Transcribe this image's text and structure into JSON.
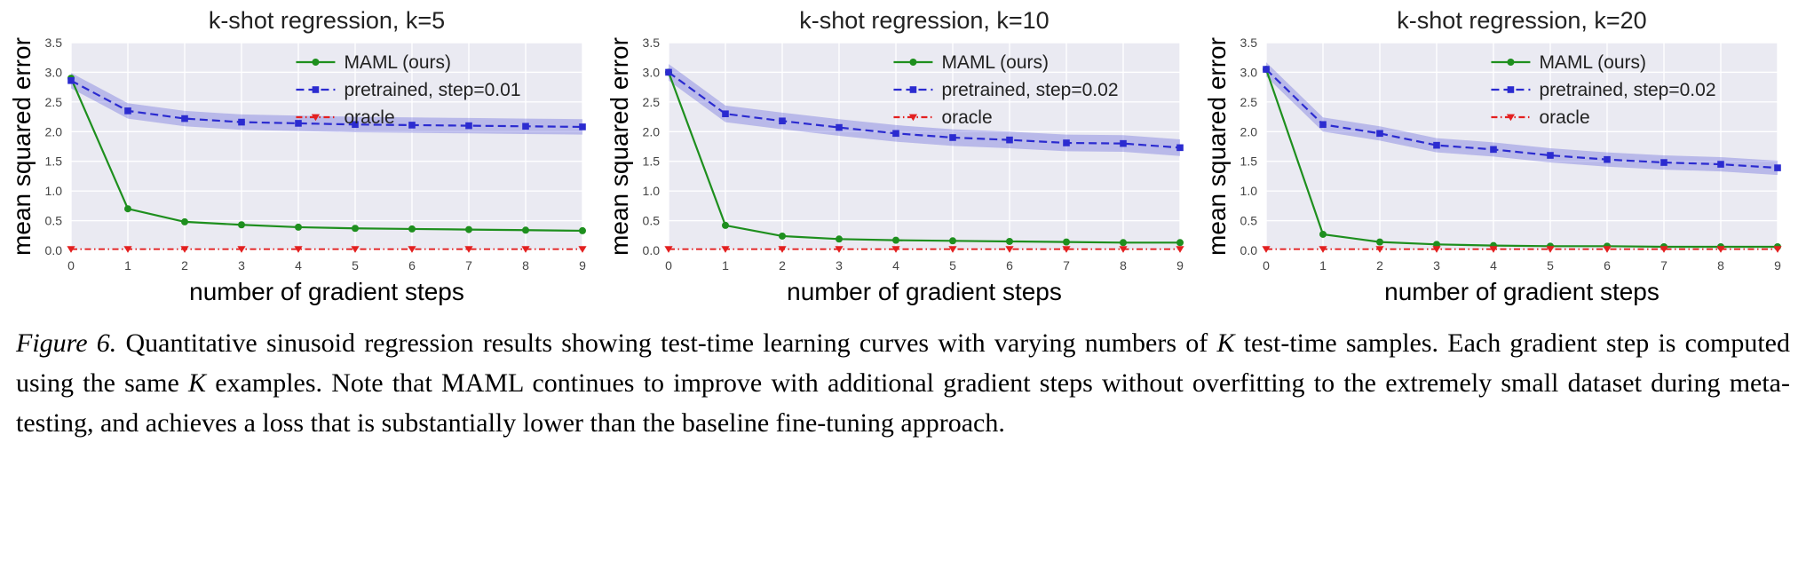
{
  "style": {
    "plot_bg": "#eaeaf2",
    "grid_color": "#ffffff",
    "title_color": "#222222",
    "axis_label_color": "#000000",
    "tick_color": "#444444",
    "legend_text_color": "#222222"
  },
  "chart_data": [
    {
      "type": "line",
      "title": "k-shot regression, k=5",
      "xlabel": "number of gradient steps",
      "ylabel": "mean squared error",
      "x": [
        0,
        1,
        2,
        3,
        4,
        5,
        6,
        7,
        8,
        9
      ],
      "xlim": [
        0,
        9
      ],
      "ylim": [
        0.0,
        3.5
      ],
      "yticks": [
        0.0,
        0.5,
        1.0,
        1.5,
        2.0,
        2.5,
        3.0,
        3.5
      ],
      "grid": true,
      "legend_position": "upper right",
      "series": [
        {
          "name": "MAML (ours)",
          "color": "#1e8f1e",
          "line": "solid",
          "marker": "circle",
          "values": [
            2.9,
            0.7,
            0.48,
            0.43,
            0.39,
            0.37,
            0.36,
            0.35,
            0.34,
            0.33
          ]
        },
        {
          "name": "pretrained, step=0.01",
          "color": "#2b2bd0",
          "line": "dashed",
          "marker": "square",
          "band_halfwidth": 0.13,
          "band_color": "rgba(80, 80, 215, 0.32)",
          "values": [
            2.86,
            2.35,
            2.22,
            2.16,
            2.14,
            2.12,
            2.11,
            2.1,
            2.09,
            2.08
          ]
        },
        {
          "name": "oracle",
          "color": "#e32020",
          "line": "dashdot",
          "marker": "triangle-down",
          "values": [
            0.02,
            0.02,
            0.02,
            0.02,
            0.02,
            0.02,
            0.02,
            0.02,
            0.02,
            0.02
          ]
        }
      ]
    },
    {
      "type": "line",
      "title": "k-shot regression, k=10",
      "xlabel": "number of gradient steps",
      "ylabel": "mean squared error",
      "x": [
        0,
        1,
        2,
        3,
        4,
        5,
        6,
        7,
        8,
        9
      ],
      "xlim": [
        0,
        9
      ],
      "ylim": [
        0.0,
        3.5
      ],
      "yticks": [
        0.0,
        0.5,
        1.0,
        1.5,
        2.0,
        2.5,
        3.0,
        3.5
      ],
      "grid": true,
      "legend_position": "upper right",
      "series": [
        {
          "name": "MAML (ours)",
          "color": "#1e8f1e",
          "line": "solid",
          "marker": "circle",
          "values": [
            3.0,
            0.42,
            0.24,
            0.19,
            0.17,
            0.16,
            0.15,
            0.14,
            0.13,
            0.13
          ]
        },
        {
          "name": "pretrained, step=0.02",
          "color": "#2b2bd0",
          "line": "dashed",
          "marker": "square",
          "band_halfwidth": 0.14,
          "band_color": "rgba(80, 80, 215, 0.32)",
          "values": [
            3.0,
            2.3,
            2.18,
            2.07,
            1.97,
            1.9,
            1.86,
            1.81,
            1.8,
            1.73
          ]
        },
        {
          "name": "oracle",
          "color": "#e32020",
          "line": "dashdot",
          "marker": "triangle-down",
          "values": [
            0.02,
            0.02,
            0.02,
            0.02,
            0.02,
            0.02,
            0.02,
            0.02,
            0.02,
            0.02
          ]
        }
      ]
    },
    {
      "type": "line",
      "title": "k-shot regression, k=20",
      "xlabel": "number of gradient steps",
      "ylabel": "mean squared error",
      "x": [
        0,
        1,
        2,
        3,
        4,
        5,
        6,
        7,
        8,
        9
      ],
      "xlim": [
        0,
        9
      ],
      "ylim": [
        0.0,
        3.5
      ],
      "yticks": [
        0.0,
        0.5,
        1.0,
        1.5,
        2.0,
        2.5,
        3.0,
        3.5
      ],
      "grid": true,
      "legend_position": "upper right",
      "series": [
        {
          "name": "MAML (ours)",
          "color": "#1e8f1e",
          "line": "solid",
          "marker": "circle",
          "values": [
            3.05,
            0.27,
            0.14,
            0.1,
            0.08,
            0.07,
            0.07,
            0.06,
            0.06,
            0.06
          ]
        },
        {
          "name": "pretrained, step=0.02",
          "color": "#2b2bd0",
          "line": "dashed",
          "marker": "square",
          "band_halfwidth": 0.12,
          "band_color": "rgba(80, 80, 215, 0.32)",
          "values": [
            3.05,
            2.12,
            1.97,
            1.77,
            1.7,
            1.6,
            1.53,
            1.48,
            1.45,
            1.39
          ]
        },
        {
          "name": "oracle",
          "color": "#e32020",
          "line": "dashdot",
          "marker": "triangle-down",
          "values": [
            0.02,
            0.02,
            0.02,
            0.02,
            0.02,
            0.02,
            0.02,
            0.02,
            0.02,
            0.02
          ]
        }
      ]
    }
  ],
  "figure": {
    "caption_segments": [
      {
        "text": "Figure 6.",
        "style": "italic"
      },
      {
        "text": " Quantitative sinusoid regression results showing test-time learning curves with varying numbers of ",
        "style": "normal"
      },
      {
        "text": "K",
        "style": "math"
      },
      {
        "text": " test-time samples. Each gradient step is computed using the same ",
        "style": "normal"
      },
      {
        "text": "K",
        "style": "math"
      },
      {
        "text": " examples. Note that MAML continues to improve with additional gradient steps without overfitting to the extremely small dataset during meta-testing, and achieves a loss that is substantially lower than the baseline fine-tuning approach.",
        "style": "normal"
      }
    ]
  }
}
